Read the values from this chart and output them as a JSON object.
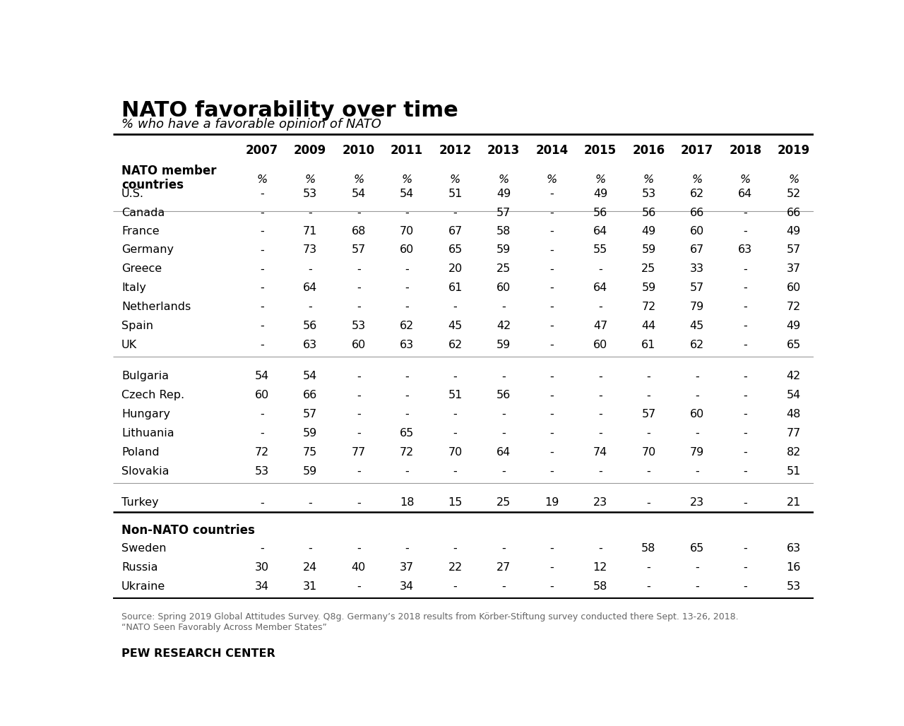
{
  "title": "NATO favorability over time",
  "subtitle": "% who have a favorable opinion of NATO",
  "columns": [
    "2007",
    "2009",
    "2010",
    "2011",
    "2012",
    "2013",
    "2014",
    "2015",
    "2016",
    "2017",
    "2018",
    "2019"
  ],
  "header_row": [
    "%",
    "%",
    "%",
    "%",
    "%",
    "%",
    "%",
    "%",
    "%",
    "%",
    "%",
    "%"
  ],
  "section1_label": "NATO member\ncountries",
  "section1_rows": [
    [
      "U.S.",
      "-",
      "53",
      "54",
      "54",
      "51",
      "49",
      "-",
      "49",
      "53",
      "62",
      "64",
      "52"
    ],
    [
      "Canada",
      "-",
      "-",
      "-",
      "-",
      "-",
      "57",
      "-",
      "56",
      "56",
      "66",
      "-",
      "66"
    ],
    [
      "France",
      "-",
      "71",
      "68",
      "70",
      "67",
      "58",
      "-",
      "64",
      "49",
      "60",
      "-",
      "49"
    ],
    [
      "Germany",
      "-",
      "73",
      "57",
      "60",
      "65",
      "59",
      "-",
      "55",
      "59",
      "67",
      "63",
      "57"
    ],
    [
      "Greece",
      "-",
      "-",
      "-",
      "-",
      "20",
      "25",
      "-",
      "-",
      "25",
      "33",
      "-",
      "37"
    ],
    [
      "Italy",
      "-",
      "64",
      "-",
      "-",
      "61",
      "60",
      "-",
      "64",
      "59",
      "57",
      "-",
      "60"
    ],
    [
      "Netherlands",
      "-",
      "-",
      "-",
      "-",
      "-",
      "-",
      "-",
      "-",
      "72",
      "79",
      "-",
      "72"
    ],
    [
      "Spain",
      "-",
      "56",
      "53",
      "62",
      "45",
      "42",
      "-",
      "47",
      "44",
      "45",
      "-",
      "49"
    ],
    [
      "UK",
      "-",
      "63",
      "60",
      "63",
      "62",
      "59",
      "-",
      "60",
      "61",
      "62",
      "-",
      "65"
    ]
  ],
  "section2_rows": [
    [
      "Bulgaria",
      "54",
      "54",
      "-",
      "-",
      "-",
      "-",
      "-",
      "-",
      "-",
      "-",
      "-",
      "42"
    ],
    [
      "Czech Rep.",
      "60",
      "66",
      "-",
      "-",
      "51",
      "56",
      "-",
      "-",
      "-",
      "-",
      "-",
      "54"
    ],
    [
      "Hungary",
      "-",
      "57",
      "-",
      "-",
      "-",
      "-",
      "-",
      "-",
      "57",
      "60",
      "-",
      "48"
    ],
    [
      "Lithuania",
      "-",
      "59",
      "-",
      "65",
      "-",
      "-",
      "-",
      "-",
      "-",
      "-",
      "-",
      "77"
    ],
    [
      "Poland",
      "72",
      "75",
      "77",
      "72",
      "70",
      "64",
      "-",
      "74",
      "70",
      "79",
      "-",
      "82"
    ],
    [
      "Slovakia",
      "53",
      "59",
      "-",
      "-",
      "-",
      "-",
      "-",
      "-",
      "-",
      "-",
      "-",
      "51"
    ]
  ],
  "section3_rows": [
    [
      "Turkey",
      "-",
      "-",
      "-",
      "18",
      "15",
      "25",
      "19",
      "23",
      "-",
      "23",
      "-",
      "21"
    ]
  ],
  "section4_label": "Non-NATO countries",
  "section4_rows": [
    [
      "Sweden",
      "-",
      "-",
      "-",
      "-",
      "-",
      "-",
      "-",
      "-",
      "58",
      "65",
      "-",
      "63"
    ],
    [
      "Russia",
      "30",
      "24",
      "40",
      "37",
      "22",
      "27",
      "-",
      "12",
      "-",
      "-",
      "-",
      "16"
    ],
    [
      "Ukraine",
      "34",
      "31",
      "-",
      "34",
      "-",
      "-",
      "-",
      "58",
      "-",
      "-",
      "-",
      "53"
    ]
  ],
  "source_text": "Source: Spring 2019 Global Attitudes Survey. Q8g. Germany’s 2018 results from Körber-Stiftung survey conducted there Sept. 13-26, 2018.\n“NATO Seen Favorably Across Member States”",
  "footer": "PEW RESEARCH CENTER",
  "bg_color": "#FFFFFF",
  "section_line_color": "#999999",
  "strong_line_color": "#000000",
  "text_color": "#000000",
  "source_color": "#666666"
}
